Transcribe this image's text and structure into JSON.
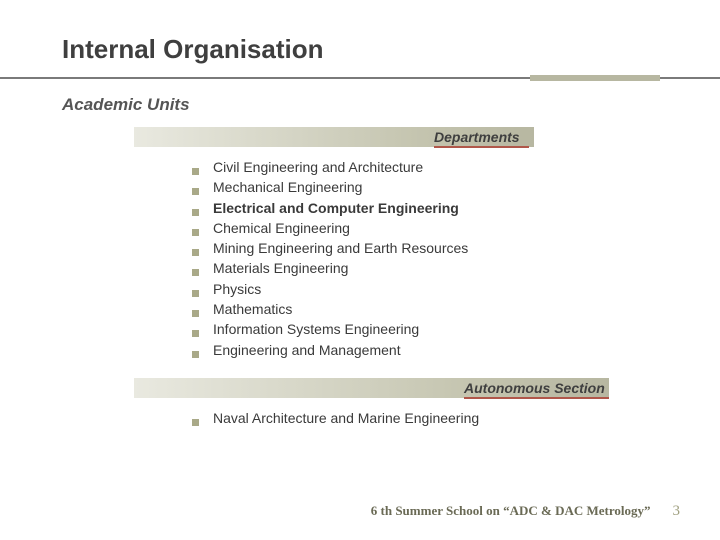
{
  "title": "Internal Organisation",
  "subtitle": "Academic Units",
  "sections": {
    "departments": {
      "label": "Departments",
      "items": [
        {
          "text": "Civil Engineering and Architecture",
          "bold": false
        },
        {
          "text": "Mechanical Engineering",
          "bold": false
        },
        {
          "text": "Electrical and Computer Engineering",
          "bold": true
        },
        {
          "text": "Chemical Engineering",
          "bold": false
        },
        {
          "text": "Mining Engineering and Earth Resources",
          "bold": false
        },
        {
          "text": "Materials Engineering",
          "bold": false
        },
        {
          "text": "Physics",
          "bold": false
        },
        {
          "text": "Mathematics",
          "bold": false
        },
        {
          "text": "Information Systems Engineering",
          "bold": false
        },
        {
          "text": "Engineering and Management",
          "bold": false
        }
      ]
    },
    "autonomous": {
      "label": "Autonomous Section",
      "items": [
        {
          "text": "Naval Architecture and Marine Engineering",
          "bold": false
        }
      ]
    }
  },
  "footer": {
    "school": "6 th Summer School on “ADC & DAC Metrology”",
    "page": "3"
  },
  "colors": {
    "title_text": "#3f3f3f",
    "rule_line": "#7a7a7a",
    "accent_bar": "#b7b7a1",
    "header_underline": "#b0574a",
    "bullet": "#a9a988",
    "body_text": "#3a3a3a",
    "footer_text": "#6a6a55"
  }
}
